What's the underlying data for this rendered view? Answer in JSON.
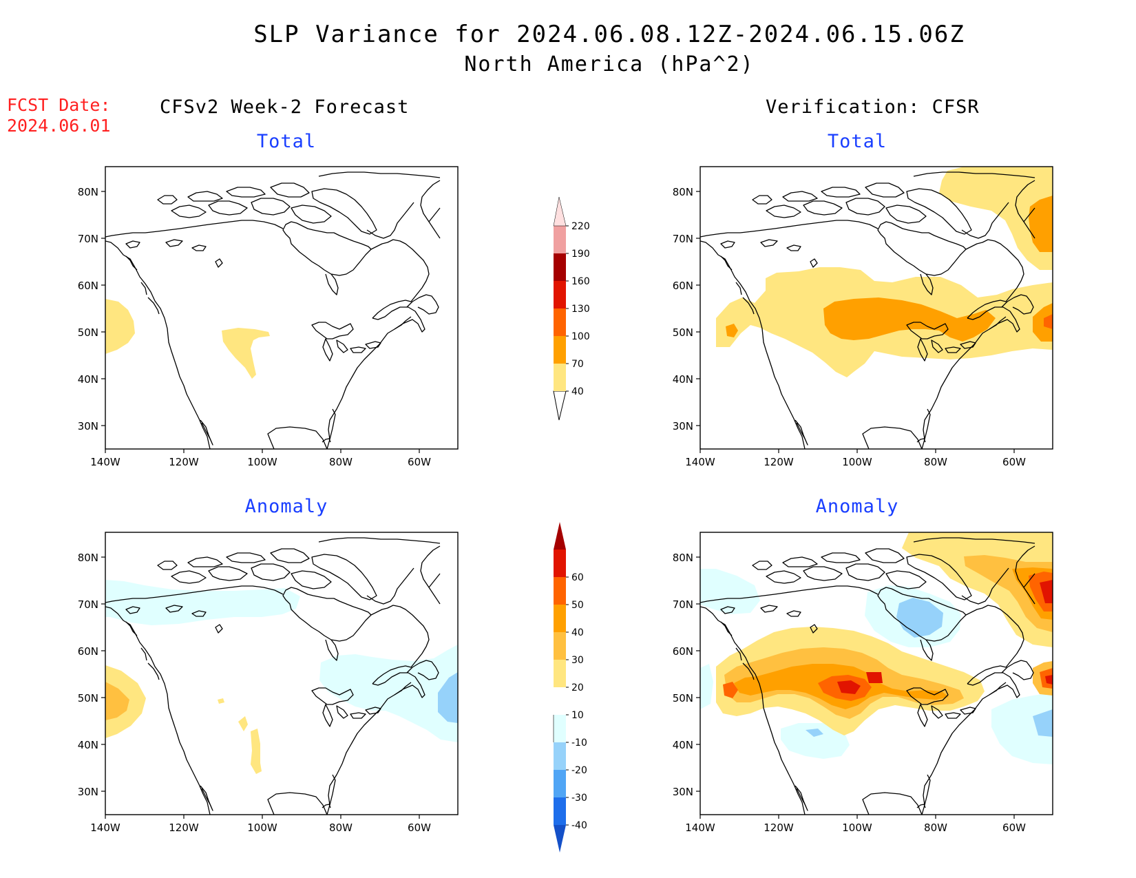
{
  "title": "SLP Variance for 2024.06.08.12Z-2024.06.15.06Z",
  "subtitle": "North America (hPa^2)",
  "fcst": {
    "line1": "FCST Date:",
    "line2": "2024.06.01"
  },
  "columns": {
    "left": "CFSv2 Week-2 Forecast",
    "right": "Verification: CFSR"
  },
  "panel_labels": {
    "total": "Total",
    "anomaly": "Anomaly"
  },
  "axes": {
    "lat_ticks": [
      "80N",
      "70N",
      "60N",
      "50N",
      "40N",
      "30N"
    ],
    "lon_ticks": [
      "140W",
      "120W",
      "100W",
      "80W",
      "60W"
    ],
    "lon_range": [
      -140,
      -50
    ],
    "lat_range": [
      25,
      85
    ]
  },
  "colorbars": {
    "total": {
      "levels": [
        "40",
        "70",
        "100",
        "130",
        "160",
        "190",
        "220"
      ],
      "colors": [
        "#ffe680",
        "#ffa000",
        "#ff6400",
        "#e11400",
        "#a50000",
        "#f0a0a0",
        "#ffe0e0"
      ]
    },
    "anomaly": {
      "levels": [
        "60",
        "50",
        "40",
        "30",
        "20",
        "10",
        "-10",
        "-20",
        "-30",
        "-40"
      ],
      "colors": [
        "#a50000",
        "#e11400",
        "#ff6400",
        "#ffa000",
        "#ffc040",
        "#ffe680",
        "#ffffff",
        "#e0ffff",
        "#96d2fa",
        "#50a5f5",
        "#1e6eeb",
        "#1450c8"
      ]
    }
  },
  "palette": {
    "yellow": "#ffe680",
    "lightorange": "#ffc040",
    "orange": "#ffa000",
    "darkorange": "#ff6400",
    "red": "#e11400",
    "lightblue": "#e0ffff",
    "blue": "#96d2fa"
  }
}
